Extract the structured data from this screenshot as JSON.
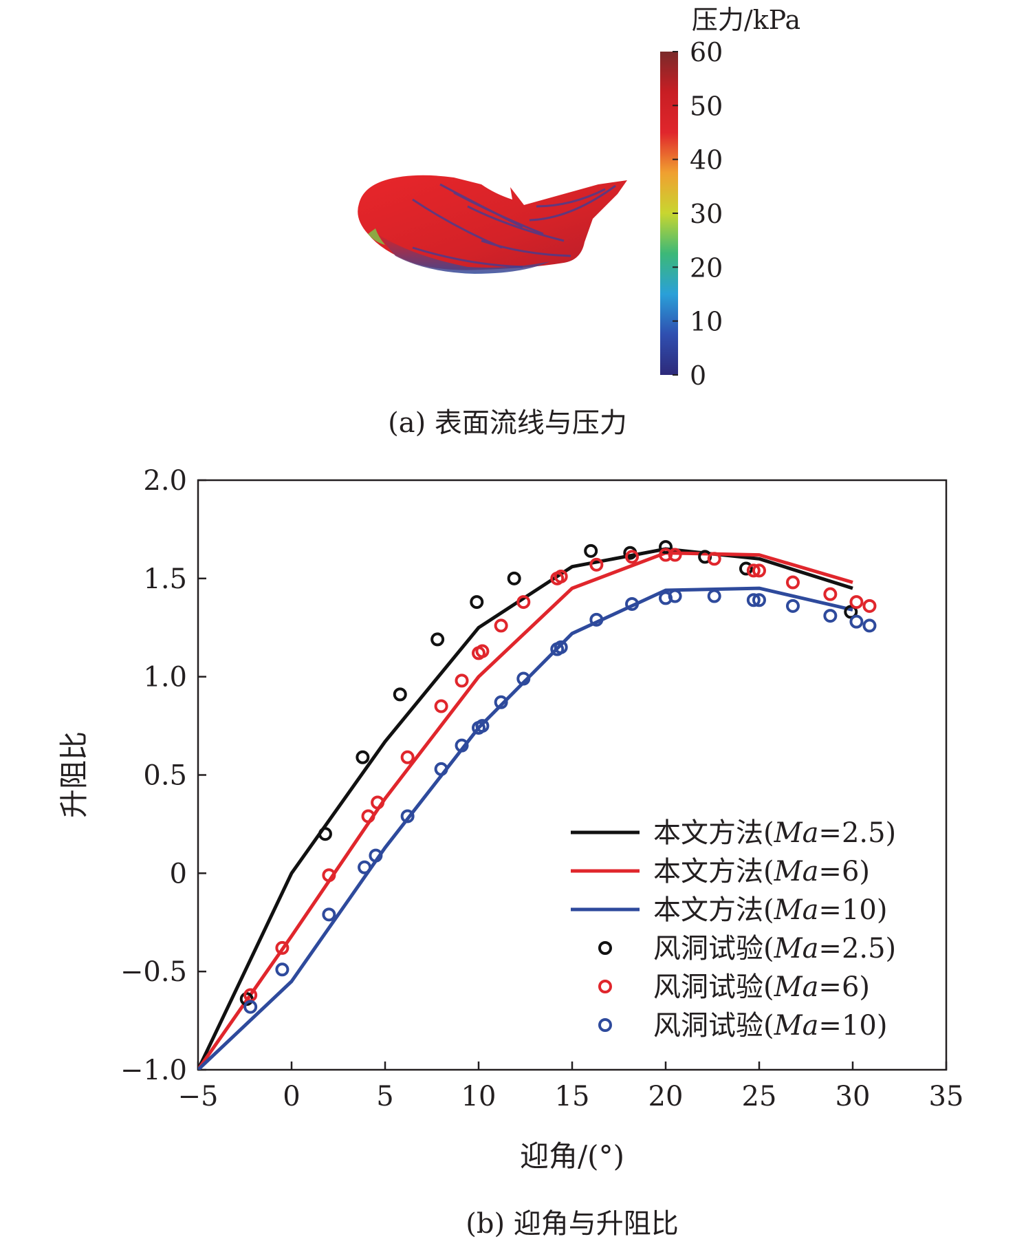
{
  "panel_a": {
    "caption": "(a) 表面流线与压力",
    "colorbar": {
      "title": "压力/kPa",
      "ticks": [
        "0",
        "10",
        "20",
        "30",
        "40",
        "50",
        "60"
      ],
      "min": 0,
      "max": 60,
      "colors": [
        "#2e2a7a",
        "#2f4fb0",
        "#2aa0d8",
        "#3cb878",
        "#c8d630",
        "#f0a030",
        "#e0262c",
        "#c81e24",
        "#7a2a2a"
      ]
    }
  },
  "panel_b": {
    "caption": "(b) 迎角与升阻比"
  },
  "chart_data": {
    "type": "line",
    "xlabel": "迎角/(°)",
    "ylabel": "升阻比",
    "xlim": [
      -5,
      35
    ],
    "ylim": [
      -1.0,
      2.0
    ],
    "xticks": [
      "−5",
      "0",
      "5",
      "10",
      "15",
      "20",
      "25",
      "30",
      "35"
    ],
    "yticks": [
      "−1.0",
      "−0.5",
      "0",
      "0.5",
      "1.0",
      "1.5",
      "2.0"
    ],
    "legend_position": "bottom-right",
    "legend": [
      {
        "prefix": "本文方法(",
        "ital": "Ma",
        "suffix": "=2.5)",
        "kind": "line",
        "color": "#111111"
      },
      {
        "prefix": "本文方法(",
        "ital": "Ma",
        "suffix": "=6)",
        "kind": "line",
        "color": "#e0262c"
      },
      {
        "prefix": "本文方法(",
        "ital": "Ma",
        "suffix": "=10)",
        "kind": "line",
        "color": "#2e4a9c"
      },
      {
        "prefix": "风洞试验(",
        "ital": "Ma",
        "suffix": "=2.5)",
        "kind": "marker",
        "color": "#111111"
      },
      {
        "prefix": "风洞试验(",
        "ital": "Ma",
        "suffix": "=6)",
        "kind": "marker",
        "color": "#e0262c"
      },
      {
        "prefix": "风洞试验(",
        "ital": "Ma",
        "suffix": "=10)",
        "kind": "marker",
        "color": "#2e4a9c"
      }
    ],
    "lines": [
      {
        "color": "#111111",
        "x": [
          -5,
          -2.5,
          0,
          5,
          10,
          15,
          20,
          25,
          30
        ],
        "y": [
          -1.0,
          -0.5,
          0.0,
          0.67,
          1.25,
          1.56,
          1.65,
          1.6,
          1.45
        ]
      },
      {
        "color": "#e0262c",
        "x": [
          -5,
          0,
          5,
          10,
          15,
          20,
          25,
          30
        ],
        "y": [
          -1.0,
          -0.32,
          0.38,
          1.0,
          1.45,
          1.63,
          1.62,
          1.48
        ]
      },
      {
        "color": "#2e4a9c",
        "x": [
          -5,
          0,
          5,
          10,
          15,
          20,
          25,
          30
        ],
        "y": [
          -1.0,
          -0.55,
          0.13,
          0.74,
          1.22,
          1.44,
          1.45,
          1.34
        ]
      }
    ],
    "markers": [
      {
        "color": "#111111",
        "x": [
          -2.4,
          1.8,
          3.8,
          5.8,
          7.8,
          9.9,
          11.9,
          16.0,
          18.1,
          20.0,
          22.1,
          24.3,
          29.9
        ],
        "y": [
          -0.64,
          0.2,
          0.59,
          0.91,
          1.19,
          1.38,
          1.5,
          1.64,
          1.63,
          1.66,
          1.61,
          1.55,
          1.33
        ]
      },
      {
        "color": "#e0262c",
        "x": [
          -2.2,
          -0.5,
          2.0,
          4.1,
          4.6,
          6.2,
          8.0,
          9.1,
          10.0,
          10.2,
          11.2,
          12.4,
          14.2,
          14.4,
          16.3,
          18.2,
          20.0,
          20.5,
          22.6,
          24.7,
          25.0,
          26.8,
          28.8,
          30.2,
          30.9
        ],
        "y": [
          -0.62,
          -0.38,
          -0.01,
          0.29,
          0.36,
          0.59,
          0.85,
          0.98,
          1.12,
          1.13,
          1.26,
          1.38,
          1.5,
          1.51,
          1.57,
          1.61,
          1.62,
          1.62,
          1.6,
          1.54,
          1.54,
          1.48,
          1.42,
          1.38,
          1.36
        ]
      },
      {
        "color": "#2e4a9c",
        "x": [
          -2.2,
          -0.5,
          2.0,
          3.9,
          4.5,
          6.2,
          8.0,
          9.1,
          10.0,
          10.2,
          11.2,
          12.4,
          14.2,
          14.4,
          16.3,
          18.2,
          20.0,
          20.5,
          22.6,
          24.7,
          25.0,
          26.8,
          28.8,
          30.2,
          30.9
        ],
        "y": [
          -0.68,
          -0.49,
          -0.21,
          0.03,
          0.09,
          0.29,
          0.53,
          0.65,
          0.74,
          0.75,
          0.87,
          0.99,
          1.14,
          1.15,
          1.29,
          1.37,
          1.4,
          1.41,
          1.41,
          1.39,
          1.39,
          1.36,
          1.31,
          1.28,
          1.26
        ]
      }
    ]
  }
}
